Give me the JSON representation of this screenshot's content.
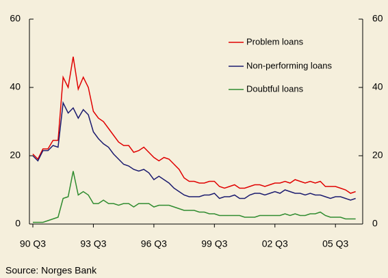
{
  "chart_data": {
    "type": "line",
    "categories": [
      "90 Q3",
      null,
      null,
      null,
      null,
      null,
      null,
      null,
      null,
      null,
      null,
      null,
      "93 Q3",
      null,
      null,
      null,
      null,
      null,
      null,
      null,
      null,
      null,
      null,
      null,
      "96 Q3",
      null,
      null,
      null,
      null,
      null,
      null,
      null,
      null,
      null,
      null,
      null,
      "99 Q3",
      null,
      null,
      null,
      null,
      null,
      null,
      null,
      null,
      null,
      null,
      null,
      "02 Q3",
      null,
      null,
      null,
      null,
      null,
      null,
      null,
      null,
      null,
      null,
      null,
      "05 Q3",
      null,
      null,
      null,
      null
    ],
    "series": [
      {
        "name": "Problem loans",
        "color": "#e00000",
        "values": [
          20.5,
          19,
          22,
          22,
          24.5,
          24.5,
          43,
          40,
          49,
          39.5,
          43,
          40,
          33,
          31,
          30,
          28,
          26,
          24,
          23,
          23,
          21,
          21.5,
          22.5,
          21,
          19.5,
          18.5,
          19.5,
          19,
          17.5,
          16,
          13.5,
          12.5,
          12.5,
          12,
          12,
          12.5,
          12.5,
          11,
          10.5,
          11,
          11.5,
          10.5,
          10.5,
          11,
          11.5,
          11.5,
          11,
          11.5,
          12,
          12,
          12.5,
          12,
          13,
          12.5,
          12,
          12.5,
          12,
          12.5,
          11,
          11,
          11,
          10.5,
          10,
          9,
          9.5
        ]
      },
      {
        "name": "Non-performing loans",
        "color": "#1a1a6e",
        "values": [
          20,
          18.5,
          21.5,
          21.5,
          23,
          22.5,
          35.5,
          32.5,
          34,
          31,
          33.5,
          32,
          27,
          25,
          23.5,
          22.5,
          20.5,
          19,
          17.5,
          17,
          16,
          15.5,
          16,
          15,
          13,
          14,
          13,
          12,
          10.5,
          9.5,
          8.5,
          8,
          8,
          8,
          8.5,
          8.5,
          9,
          7.5,
          8,
          8,
          8.5,
          7.5,
          7.5,
          8.5,
          9,
          9,
          8.5,
          9,
          9.5,
          9,
          10,
          9.5,
          9,
          9,
          8.5,
          9,
          8.5,
          8.5,
          8,
          7.5,
          8,
          8,
          7.5,
          7,
          7.5
        ]
      },
      {
        "name": "Doubtful loans",
        "color": "#2e8b2e",
        "values": [
          0.5,
          0.5,
          0.5,
          1,
          1.5,
          2,
          7.5,
          8,
          15.5,
          8.5,
          9.5,
          8.5,
          6,
          6,
          7,
          6,
          6,
          5.5,
          6,
          6,
          5,
          6,
          6,
          6,
          5,
          5.5,
          5.5,
          5.5,
          5,
          4.5,
          4,
          4,
          4,
          3.5,
          3.5,
          3,
          3,
          2.5,
          2.5,
          2.5,
          2.5,
          2.5,
          2,
          2,
          2,
          2.5,
          2.5,
          2.5,
          2.5,
          2.5,
          3,
          2.5,
          3,
          2.5,
          2.5,
          3,
          3,
          3.5,
          2.5,
          2,
          2,
          2,
          1.5,
          1.5,
          1.5
        ]
      }
    ],
    "ylim": [
      0,
      60
    ],
    "yticks": [
      0,
      20,
      40,
      60
    ],
    "y2lim": [
      0,
      60
    ],
    "y2ticks": [
      0,
      20,
      40,
      60
    ],
    "grid": false,
    "legend": "top-right",
    "source": "Source: Norges Bank"
  }
}
